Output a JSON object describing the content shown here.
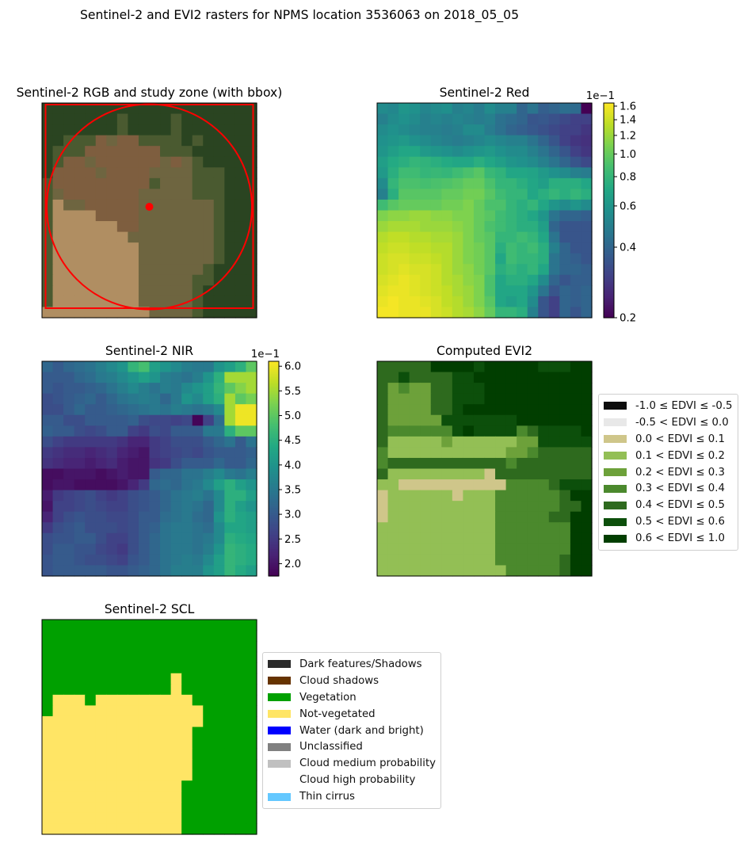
{
  "figure": {
    "suptitle": "Sentinel-2 and EVI2 rasters for NPMS location 3536063 on 2018_05_05"
  },
  "chart_data": [
    {
      "type": "heatmap",
      "id": "rgb",
      "title": "Sentinel-2 RGB and study zone (with bbox)",
      "grid": false,
      "annotations": [
        "red bounding box",
        "red study-zone circle",
        "red center point"
      ],
      "overlay_color": "#ff0000",
      "rows": [
        "DDDDDDDDDDDDDDDDDDDD",
        "DDDDDDDdDDDDdDDDDDDD",
        "DDDDDDDdDDDDdDDDDDDD",
        "DDdddBbBBddddDdDDDDD",
        "DdddBBBBBBBdddDDDDDD",
        "DdBBbBBBBBBbBbdDDDDD",
        "DBBBBbBBBBbbbbdddDDD",
        "dBBBBBBBBBdbbbdddDDD",
        "dbBBBBBBBbbbbbdddDDD",
        "dsbbBBBBBbbbbbbbdDDD",
        "dssssBBBBbbbbbbbdDDD",
        "dssssssBBbbbbbbbdDDD",
        "dsssssssbbbbbbbbdDDD",
        "dssssssssbbbbbbbdDDD",
        "dssssssssbbbbbbbdDDD",
        "dssssssssbbbbbbdDDDD",
        "dssssssssbbbbbddDDDD",
        "dssssssssbbbbbdDDDDD",
        "dssssssssbbbbbdDDDDD",
        "ssssssssssbbbbdDDDDD"
      ],
      "palette": {
        "D": "#2a4421",
        "d": "#4a5a30",
        "B": "#7e5e3f",
        "b": "#6e6540",
        "s": "#b08e62"
      }
    },
    {
      "type": "heatmap",
      "id": "red",
      "title": "Sentinel-2 Red",
      "colormap": "viridis",
      "scale": "log",
      "colorbar": {
        "offset_text": "1e−1",
        "ticks": [
          {
            "value": 1.6,
            "label": "1.6"
          },
          {
            "value": 1.4,
            "label": "1.4"
          },
          {
            "value": 1.2,
            "label": "1.2"
          },
          {
            "value": 1.0,
            "label": "1.0"
          },
          {
            "value": 0.8,
            "label": "0.8"
          },
          {
            "value": 0.6,
            "label": "0.6"
          },
          {
            "value": 0.4,
            "label": "0.4"
          },
          {
            "value": 0.2,
            "label": "0.2"
          }
        ]
      },
      "vlim": [
        0.2,
        1.65
      ],
      "values": [
        [
          0.55,
          0.53,
          0.6,
          0.58,
          0.52,
          0.55,
          0.57,
          0.5,
          0.52,
          0.48,
          0.55,
          0.5,
          0.5,
          0.4,
          0.45,
          0.38,
          0.4,
          0.43,
          0.42,
          0.2
        ],
        [
          0.5,
          0.55,
          0.58,
          0.55,
          0.5,
          0.52,
          0.5,
          0.52,
          0.5,
          0.48,
          0.5,
          0.44,
          0.42,
          0.4,
          0.35,
          0.36,
          0.34,
          0.32,
          0.3,
          0.3
        ],
        [
          0.55,
          0.58,
          0.55,
          0.52,
          0.5,
          0.5,
          0.48,
          0.5,
          0.55,
          0.55,
          0.48,
          0.44,
          0.4,
          0.38,
          0.36,
          0.34,
          0.32,
          0.3,
          0.3,
          0.28
        ],
        [
          0.58,
          0.6,
          0.62,
          0.58,
          0.55,
          0.52,
          0.5,
          0.48,
          0.5,
          0.52,
          0.55,
          0.52,
          0.5,
          0.5,
          0.45,
          0.4,
          0.35,
          0.3,
          0.28,
          0.27
        ],
        [
          0.6,
          0.65,
          0.7,
          0.7,
          0.62,
          0.6,
          0.58,
          0.55,
          0.58,
          0.6,
          0.62,
          0.58,
          0.55,
          0.55,
          0.5,
          0.45,
          0.4,
          0.35,
          0.3,
          0.28
        ],
        [
          0.65,
          0.72,
          0.75,
          0.8,
          0.78,
          0.75,
          0.72,
          0.7,
          0.7,
          0.75,
          0.7,
          0.65,
          0.6,
          0.58,
          0.55,
          0.5,
          0.45,
          0.4,
          0.35,
          0.32
        ],
        [
          0.62,
          0.75,
          0.85,
          0.85,
          0.8,
          0.82,
          0.8,
          0.85,
          0.9,
          0.95,
          0.82,
          0.78,
          0.7,
          0.7,
          0.68,
          0.62,
          0.58,
          0.55,
          0.5,
          0.48
        ],
        [
          0.55,
          0.8,
          0.9,
          0.9,
          0.88,
          0.9,
          0.92,
          0.95,
          1.0,
          1.0,
          0.9,
          0.8,
          0.8,
          0.75,
          0.7,
          0.65,
          0.75,
          0.75,
          0.75,
          0.7
        ],
        [
          0.5,
          0.75,
          0.95,
          0.95,
          0.95,
          0.95,
          1.0,
          1.0,
          1.05,
          1.05,
          0.95,
          0.85,
          0.8,
          0.8,
          0.7,
          0.75,
          0.8,
          0.75,
          0.8,
          0.75
        ],
        [
          0.85,
          0.95,
          1.0,
          1.0,
          1.0,
          1.0,
          1.05,
          1.05,
          1.1,
          1.0,
          0.9,
          0.9,
          0.8,
          0.75,
          0.8,
          0.7,
          0.6,
          0.55,
          0.6,
          0.55
        ],
        [
          1.1,
          1.15,
          1.15,
          1.2,
          1.2,
          1.15,
          1.15,
          1.1,
          1.1,
          1.0,
          0.95,
          0.85,
          0.8,
          0.75,
          0.7,
          0.6,
          0.45,
          0.4,
          0.4,
          0.38
        ],
        [
          1.2,
          1.25,
          1.25,
          1.25,
          1.2,
          1.2,
          1.2,
          1.15,
          1.1,
          1.0,
          0.9,
          0.85,
          0.8,
          0.75,
          0.75,
          0.65,
          0.4,
          0.35,
          0.35,
          0.35
        ],
        [
          1.3,
          1.35,
          1.35,
          1.3,
          1.3,
          1.25,
          1.25,
          1.2,
          1.1,
          1.0,
          0.95,
          0.8,
          0.8,
          0.85,
          0.8,
          0.7,
          0.45,
          0.35,
          0.35,
          0.35
        ],
        [
          1.35,
          1.4,
          1.4,
          1.35,
          1.35,
          1.3,
          1.3,
          1.2,
          1.1,
          1.05,
          0.95,
          0.75,
          0.85,
          0.8,
          0.85,
          0.75,
          0.5,
          0.4,
          0.35,
          0.35
        ],
        [
          1.4,
          1.45,
          1.45,
          1.4,
          1.4,
          1.35,
          1.3,
          1.2,
          1.1,
          1.05,
          0.95,
          0.7,
          0.85,
          0.8,
          0.8,
          0.75,
          0.45,
          0.4,
          0.38,
          0.35
        ],
        [
          1.4,
          1.45,
          1.5,
          1.45,
          1.45,
          1.4,
          1.3,
          1.2,
          1.15,
          1.05,
          0.95,
          0.75,
          0.8,
          0.75,
          0.8,
          0.7,
          0.45,
          0.4,
          0.4,
          0.38
        ],
        [
          1.45,
          1.5,
          1.55,
          1.5,
          1.45,
          1.4,
          1.3,
          1.25,
          1.15,
          1.1,
          0.9,
          0.7,
          0.75,
          0.75,
          0.7,
          0.55,
          0.4,
          0.35,
          0.38,
          0.38
        ],
        [
          1.5,
          1.55,
          1.55,
          1.5,
          1.45,
          1.4,
          1.35,
          1.25,
          1.2,
          1.1,
          0.9,
          0.7,
          0.7,
          0.7,
          0.6,
          0.45,
          0.35,
          0.4,
          0.38,
          0.4
        ],
        [
          1.55,
          1.6,
          1.55,
          1.55,
          1.5,
          1.45,
          1.35,
          1.3,
          1.2,
          1.1,
          0.95,
          0.7,
          0.65,
          0.7,
          0.55,
          0.35,
          0.3,
          0.4,
          0.38,
          0.4
        ],
        [
          1.6,
          1.6,
          1.55,
          1.55,
          1.55,
          1.45,
          1.4,
          1.3,
          1.25,
          1.15,
          1.0,
          0.8,
          0.8,
          0.75,
          0.5,
          0.35,
          0.3,
          0.4,
          0.35,
          0.4
        ]
      ]
    },
    {
      "type": "heatmap",
      "id": "nir",
      "title": "Sentinel-2 NIR",
      "colormap": "viridis",
      "scale": "linear",
      "colorbar": {
        "offset_text": "1e−1",
        "ticks": [
          {
            "value": 6.0,
            "label": "6.0"
          },
          {
            "value": 5.5,
            "label": "5.5"
          },
          {
            "value": 5.0,
            "label": "5.0"
          },
          {
            "value": 4.5,
            "label": "4.5"
          },
          {
            "value": 4.0,
            "label": "4.0"
          },
          {
            "value": 3.5,
            "label": "3.5"
          },
          {
            "value": 3.0,
            "label": "3.0"
          },
          {
            "value": 2.5,
            "label": "2.5"
          },
          {
            "value": 2.0,
            "label": "2.0"
          }
        ]
      },
      "vlim": [
        1.75,
        6.1
      ],
      "values": [
        [
          3.2,
          3.0,
          3.2,
          3.3,
          3.4,
          3.6,
          3.8,
          4.0,
          4.6,
          4.8,
          4.2,
          4.0,
          3.8,
          3.6,
          3.5,
          3.5,
          4.0,
          4.2,
          4.5,
          5.0
        ],
        [
          3.0,
          3.0,
          3.0,
          3.2,
          3.3,
          3.5,
          3.6,
          3.8,
          4.0,
          4.2,
          4.0,
          3.6,
          3.5,
          3.4,
          3.6,
          4.0,
          4.5,
          5.5,
          5.5,
          5.5
        ],
        [
          3.0,
          2.9,
          3.0,
          3.0,
          3.1,
          3.2,
          3.4,
          3.6,
          3.8,
          3.6,
          3.4,
          3.6,
          3.5,
          3.8,
          4.0,
          4.2,
          4.6,
          5.0,
          5.3,
          5.5
        ],
        [
          2.8,
          2.9,
          3.0,
          3.1,
          3.2,
          3.0,
          3.2,
          3.4,
          3.5,
          3.6,
          3.5,
          3.2,
          3.5,
          4.0,
          3.8,
          4.2,
          4.5,
          5.5,
          5.0,
          5.2
        ],
        [
          2.8,
          2.8,
          3.0,
          3.2,
          3.0,
          3.0,
          3.1,
          3.2,
          3.3,
          3.4,
          3.5,
          3.4,
          3.6,
          3.5,
          3.4,
          3.5,
          3.8,
          5.5,
          6.0,
          6.0
        ],
        [
          3.0,
          3.0,
          2.8,
          2.8,
          3.0,
          3.0,
          3.0,
          3.0,
          3.1,
          2.8,
          2.7,
          2.7,
          2.6,
          2.7,
          1.8,
          2.6,
          3.3,
          5.5,
          6.0,
          6.0
        ],
        [
          3.1,
          3.0,
          3.0,
          2.8,
          2.7,
          2.8,
          3.0,
          3.0,
          2.6,
          2.5,
          2.8,
          2.7,
          3.0,
          3.0,
          3.0,
          3.5,
          3.5,
          4.5,
          5.0,
          5.0
        ],
        [
          2.8,
          2.6,
          2.5,
          2.5,
          2.5,
          2.5,
          2.5,
          2.4,
          2.2,
          2.2,
          2.5,
          2.6,
          2.8,
          2.8,
          2.8,
          3.0,
          3.2,
          3.4,
          3.0,
          3.4
        ],
        [
          2.5,
          2.4,
          2.3,
          2.3,
          2.2,
          2.3,
          2.4,
          2.2,
          2.1,
          2.0,
          2.5,
          2.6,
          2.7,
          2.8,
          2.7,
          2.9,
          3.0,
          3.0,
          3.0,
          3.1
        ],
        [
          2.4,
          2.3,
          2.2,
          2.2,
          2.1,
          2.2,
          2.3,
          2.1,
          2.0,
          2.0,
          2.4,
          2.5,
          2.8,
          3.0,
          3.0,
          3.0,
          3.2,
          3.0,
          3.0,
          3.2
        ],
        [
          1.9,
          1.9,
          2.0,
          2.0,
          2.0,
          1.9,
          2.0,
          2.1,
          2.0,
          2.0,
          3.0,
          3.2,
          3.2,
          3.4,
          3.4,
          3.6,
          3.8,
          3.5,
          3.4,
          3.6
        ],
        [
          1.9,
          2.0,
          2.0,
          1.9,
          1.9,
          1.9,
          1.9,
          2.0,
          2.2,
          2.5,
          3.2,
          3.3,
          3.2,
          3.4,
          3.5,
          3.8,
          4.2,
          4.5,
          4.2,
          4.0
        ],
        [
          2.1,
          2.5,
          2.6,
          2.7,
          2.8,
          2.6,
          2.5,
          2.6,
          2.8,
          2.9,
          3.0,
          3.2,
          3.4,
          3.5,
          3.6,
          3.4,
          3.8,
          4.5,
          4.5,
          4.2
        ],
        [
          2.0,
          2.6,
          2.6,
          2.7,
          2.8,
          2.7,
          2.6,
          2.6,
          2.8,
          2.9,
          3.0,
          3.2,
          3.4,
          3.5,
          3.4,
          3.2,
          3.8,
          4.5,
          4.2,
          4.0
        ],
        [
          2.2,
          2.6,
          2.8,
          2.9,
          2.8,
          2.8,
          2.7,
          2.7,
          2.8,
          3.0,
          3.0,
          3.3,
          3.4,
          3.5,
          3.3,
          3.2,
          4.0,
          4.5,
          4.3,
          4.2
        ],
        [
          2.5,
          2.8,
          2.9,
          3.0,
          2.8,
          2.8,
          2.8,
          2.7,
          2.8,
          3.0,
          3.1,
          3.4,
          3.5,
          3.5,
          3.4,
          3.3,
          3.8,
          4.3,
          4.3,
          4.2
        ],
        [
          2.8,
          2.9,
          2.9,
          3.0,
          3.0,
          2.8,
          2.6,
          2.6,
          2.8,
          3.0,
          3.2,
          3.4,
          3.5,
          3.5,
          3.4,
          3.5,
          3.8,
          4.5,
          4.4,
          4.3
        ],
        [
          2.8,
          3.0,
          3.0,
          2.9,
          2.9,
          2.7,
          2.6,
          2.5,
          2.8,
          3.0,
          3.2,
          3.4,
          3.5,
          3.5,
          3.4,
          3.6,
          4.0,
          4.6,
          4.5,
          4.4
        ],
        [
          2.9,
          3.0,
          3.0,
          2.9,
          2.8,
          2.8,
          2.7,
          2.6,
          2.9,
          3.0,
          3.2,
          3.4,
          3.5,
          3.6,
          3.5,
          3.8,
          4.2,
          4.6,
          4.5,
          4.4
        ],
        [
          2.9,
          3.0,
          3.0,
          3.0,
          3.0,
          3.0,
          2.9,
          2.9,
          3.0,
          3.1,
          3.2,
          3.4,
          3.6,
          3.6,
          3.6,
          4.0,
          4.2,
          4.6,
          4.4,
          4.2
        ]
      ]
    },
    {
      "type": "heatmap",
      "id": "evi2",
      "title": "Computed EVI2",
      "legend": {
        "placement": "right",
        "entries": [
          {
            "label": "-1.0 ≤ EDVI ≤ -0.5",
            "color": "#0d0d0d"
          },
          {
            "label": "-0.5 < EDVI ≤ 0.0",
            "color": "#e8e8e8"
          },
          {
            "label": "0.0 < EDVI ≤ 0.1",
            "color": "#cfc68a"
          },
          {
            "label": "0.1 < EDVI ≤ 0.2",
            "color": "#93bf55"
          },
          {
            "label": "0.2 < EDVI ≤ 0.3",
            "color": "#6da13a"
          },
          {
            "label": "0.3 < EDVI ≤ 0.4",
            "color": "#4b892d"
          },
          {
            "label": "0.4 < EDVI ≤ 0.5",
            "color": "#2e6a1e"
          },
          {
            "label": "0.5 < EDVI ≤ 0.6",
            "color": "#0c4f0b"
          },
          {
            "label": "0.6 < EDVI ≤ 1.0",
            "color": "#013e00"
          }
        ]
      },
      "class_codes": "abcdefghi",
      "rows": [
        "gggggiiiihiiiiihhhii",
        "gghgggghhiiiiiiiiiii",
        "gefeegghhhiiiiiiiiii",
        "geeeegghhhiiiiiiiiii",
        "geeeegghiiiiiiiiiiii",
        "geeeeehhhhhhhiiiiiii",
        "gffffffhihhhhfghhhhi",
        "gdddddeddddddeehhhhh",
        "fdddddddddddeefggggg",
        "fgggggggggggfggggggg",
        "gdddddddddcggggggggg",
        "ddccccccccccffffghhh",
        "cddddddcdddffffffgii",
        "cddddddddddffffffggi",
        "cddddddddddfffffggii",
        "dddddddddddfffffffii",
        "dddddddddddfffffffii",
        "dddddddddddfffffffii",
        "dddddddddddffffffgii",
        "ddddddddddddfffffgii"
      ]
    },
    {
      "type": "heatmap",
      "id": "scl",
      "title": "Sentinel-2 SCL",
      "legend": {
        "placement": "right",
        "entries": [
          {
            "label": "Dark features/Shadows",
            "color": "#2b2b2b"
          },
          {
            "label": "Cloud shadows",
            "color": "#663300"
          },
          {
            "label": "Vegetation",
            "color": "#00a000"
          },
          {
            "label": "Not-vegetated",
            "color": "#ffe565"
          },
          {
            "label": "Water (dark and bright)",
            "color": "#0000ff"
          },
          {
            "label": "Unclassified",
            "color": "#808080"
          },
          {
            "label": "Cloud medium probability",
            "color": "#c0c0c0"
          },
          {
            "label": "Cloud high probability",
            "color": "#ffffff"
          },
          {
            "label": "Thin cirrus",
            "color": "#64c8ff"
          }
        ]
      },
      "class_codes": "abcdefghi",
      "rows": [
        "cccccccccccccccccccc",
        "cccccccccccccccccccc",
        "cccccccccccccccccccc",
        "cccccccccccccccccccc",
        "cccccccccccccccccccc",
        "ccccccccccccdccccccc",
        "ccccccccccccdccccccc",
        "cdddcdddddddddcccccc",
        "cddddddddddddddccccc",
        "dddddddddddddddccccc",
        "ddddddddddddddcccccc",
        "ddddddddddddddcccccc",
        "ddddddddddddddcccccc",
        "ddddddddddddddcccccc",
        "ddddddddddddddcccccc",
        "dddddddddddddccccccc",
        "dddddddddddddccccccc",
        "dddddddddddddccccccc",
        "dddddddddddddccccccc",
        "dddddddddddddccccccc"
      ]
    }
  ]
}
